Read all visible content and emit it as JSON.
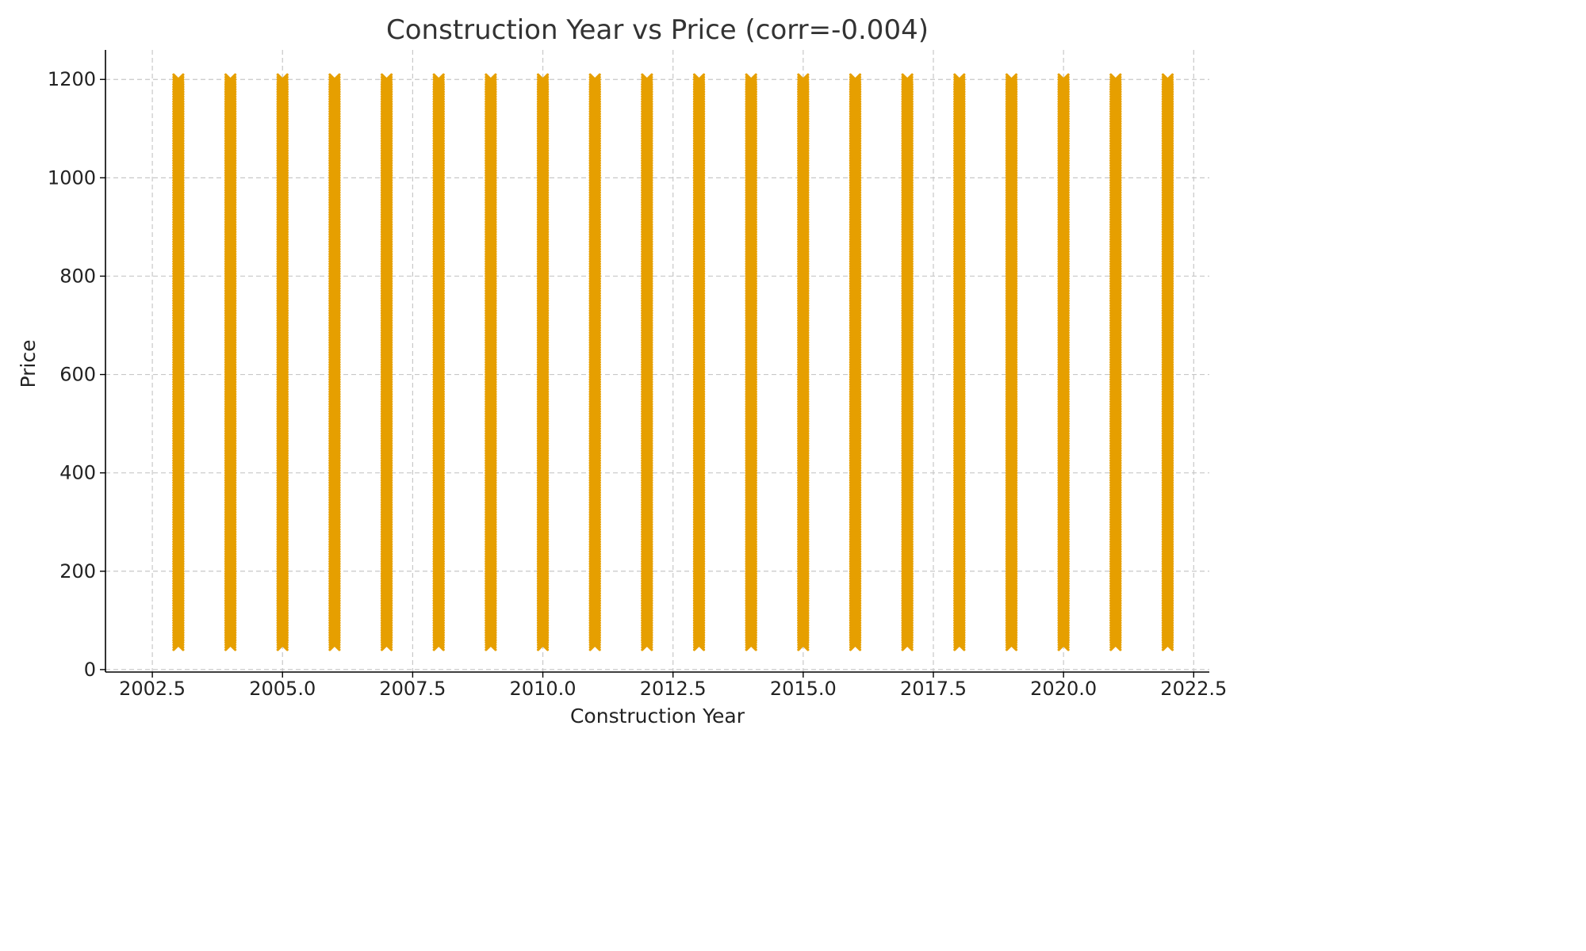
{
  "chart_data": {
    "type": "scatter",
    "title": "Construction Year vs Price (corr=-0.004)",
    "xlabel": "Construction Year",
    "ylabel": "Price",
    "xlim": [
      2001.6,
      2022.8
    ],
    "ylim": [
      -5,
      1260
    ],
    "xticks": [
      "2002.5",
      "2005.0",
      "2007.5",
      "2010.0",
      "2012.5",
      "2015.0",
      "2017.5",
      "2020.0",
      "2022.5"
    ],
    "yticks": [
      "0",
      "200",
      "400",
      "600",
      "800",
      "1000",
      "1200"
    ],
    "grid": true,
    "marker": "x",
    "color": "#E69F00",
    "x_values": [
      2003,
      2004,
      2005,
      2006,
      2007,
      2008,
      2009,
      2010,
      2011,
      2012,
      2013,
      2014,
      2015,
      2016,
      2017,
      2018,
      2019,
      2020,
      2021,
      2022
    ],
    "price_range": [
      50,
      1200
    ]
  }
}
